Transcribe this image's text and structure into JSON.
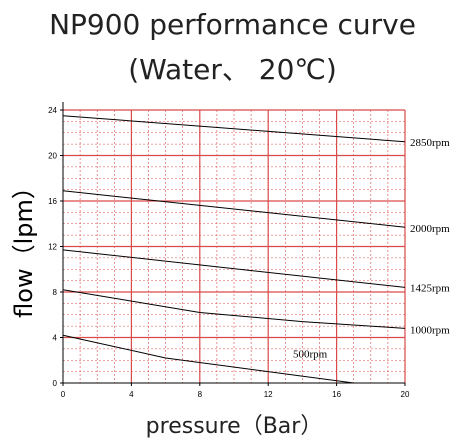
{
  "chart_data": {
    "type": "line",
    "title": "NP900 performance curve",
    "subtitle": "(Water、 20℃)",
    "xlabel": "pressure（Bar）",
    "ylabel": "flow（lpm）",
    "xlim": [
      0,
      20
    ],
    "ylim": [
      0,
      24
    ],
    "x_ticks": [
      0,
      4,
      8,
      12,
      16,
      20
    ],
    "y_ticks": [
      0,
      4,
      8,
      12,
      16,
      20,
      24
    ],
    "x_tick_labels": [
      "0",
      "4",
      "8",
      "12",
      "16",
      "20"
    ],
    "y_tick_labels": [
      "0",
      "4",
      "8",
      "12",
      "16",
      "20",
      "24"
    ],
    "grid": true,
    "colors": {
      "grid_major": "#d94a4a",
      "grid_minor": "#d94a4a",
      "axis": "#000000",
      "curve": "#000000"
    },
    "series": [
      {
        "name": "2850rpm",
        "x": [
          0,
          20
        ],
        "y": [
          23.5,
          21.2
        ]
      },
      {
        "name": "2000rpm",
        "x": [
          0,
          20
        ],
        "y": [
          16.9,
          13.7
        ]
      },
      {
        "name": "1425rpm",
        "x": [
          0,
          20
        ],
        "y": [
          11.7,
          8.4
        ]
      },
      {
        "name": "1000rpm",
        "x": [
          0,
          8,
          14,
          20
        ],
        "y": [
          8.2,
          6.2,
          5.4,
          4.8
        ]
      },
      {
        "name": "500rpm",
        "x": [
          0,
          6,
          17
        ],
        "y": [
          4.2,
          2.2,
          0
        ]
      }
    ]
  }
}
